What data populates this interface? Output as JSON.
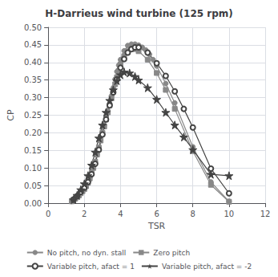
{
  "chart_data": {
    "type": "line",
    "title": "H-Darrieus wind turbine (125 rpm)",
    "xlabel": "TSR",
    "ylabel": "CP",
    "xlim": [
      0,
      12
    ],
    "ylim": [
      0,
      0.5
    ],
    "xticks": [
      0,
      2,
      4,
      6,
      8,
      10,
      12
    ],
    "yticks": [
      {
        "value": 0,
        "label": "0.00"
      },
      0.05,
      {
        "value": 0.1,
        "label": "0.10"
      },
      0.15,
      {
        "value": 0.2,
        "label": "0.20"
      },
      0.25,
      {
        "value": 0.3,
        "label": "0.30"
      },
      0.35,
      {
        "value": 0.4,
        "label": "0.40"
      },
      0.45,
      {
        "value": 0.5,
        "label": "0.50"
      }
    ],
    "grid": true,
    "legend": "bottom",
    "series": [
      {
        "name": "No pitch, no dyn. stall",
        "color": "#888888",
        "marker": "circle",
        "x": [
          1.3,
          1.4,
          1.5,
          1.6,
          1.7,
          1.8,
          1.9,
          2.0,
          2.1,
          2.2,
          2.3,
          2.4,
          2.5,
          2.6,
          2.7,
          2.8,
          2.9,
          3.0,
          3.1,
          3.2,
          3.3,
          3.4,
          3.5,
          3.6,
          3.7,
          3.8,
          3.9,
          4.0,
          4.2,
          4.4,
          4.6,
          4.8,
          5.0,
          5.2,
          5.4,
          5.6,
          5.8,
          6.0,
          6.5,
          7.0,
          8.0,
          9.0,
          10.0
        ],
        "values": [
          0.005,
          0.01,
          0.015,
          0.02,
          0.025,
          0.03,
          0.035,
          0.042,
          0.05,
          0.06,
          0.072,
          0.085,
          0.1,
          0.118,
          0.138,
          0.158,
          0.18,
          0.202,
          0.222,
          0.242,
          0.262,
          0.282,
          0.305,
          0.328,
          0.352,
          0.374,
          0.392,
          0.408,
          0.433,
          0.448,
          0.452,
          0.452,
          0.449,
          0.443,
          0.435,
          0.423,
          0.408,
          0.39,
          0.34,
          0.285,
          0.16,
          0.06,
          0.005
        ]
      },
      {
        "name": "Zero pitch",
        "color": "#888888",
        "marker": "square",
        "x": [
          1.3,
          1.4,
          1.5,
          1.6,
          1.7,
          1.8,
          1.9,
          2.0,
          2.1,
          2.2,
          2.3,
          2.4,
          2.5,
          2.6,
          2.7,
          2.8,
          2.9,
          3.0,
          3.1,
          3.2,
          3.3,
          3.4,
          3.5,
          3.6,
          3.7,
          3.8,
          3.9,
          4.0,
          4.2,
          4.4,
          4.6,
          4.8,
          5.0,
          5.5,
          6.0,
          6.5,
          7.0,
          8.0,
          9.0,
          10.0
        ],
        "values": [
          0.005,
          0.01,
          0.013,
          0.018,
          0.022,
          0.028,
          0.034,
          0.04,
          0.048,
          0.058,
          0.07,
          0.085,
          0.1,
          0.118,
          0.138,
          0.158,
          0.178,
          0.2,
          0.218,
          0.238,
          0.258,
          0.278,
          0.298,
          0.318,
          0.338,
          0.358,
          0.376,
          0.395,
          0.418,
          0.432,
          0.438,
          0.438,
          0.432,
          0.408,
          0.37,
          0.322,
          0.268,
          0.148,
          0.052,
          0.004
        ]
      },
      {
        "name": "Variable pitch, afact = 1",
        "color": "#444444",
        "marker": "open_circle",
        "x": [
          1.4,
          1.6,
          1.8,
          2.0,
          2.2,
          2.4,
          2.6,
          2.8,
          3.0,
          3.2,
          3.4,
          3.6,
          3.8,
          4.0,
          4.2,
          4.4,
          4.6,
          4.8,
          5.0,
          5.5,
          6.0,
          6.5,
          7.0,
          7.5,
          8.0,
          9.0,
          10.0
        ],
        "values": [
          0.01,
          0.02,
          0.032,
          0.044,
          0.06,
          0.082,
          0.112,
          0.152,
          0.195,
          0.238,
          0.278,
          0.315,
          0.352,
          0.385,
          0.41,
          0.428,
          0.438,
          0.443,
          0.443,
          0.428,
          0.398,
          0.362,
          0.318,
          0.268,
          0.215,
          0.098,
          0.028
        ]
      },
      {
        "name": "Variable pitch, afact = -2",
        "color": "#444444",
        "marker": "star",
        "x": [
          1.4,
          1.6,
          1.8,
          2.0,
          2.2,
          2.4,
          2.6,
          2.8,
          3.0,
          3.2,
          3.4,
          3.6,
          3.8,
          4.0,
          4.2,
          4.5,
          4.8,
          5.0,
          5.5,
          6.0,
          6.5,
          7.0,
          7.5,
          8.0,
          9.0,
          10.0
        ],
        "values": [
          0.01,
          0.022,
          0.038,
          0.055,
          0.078,
          0.108,
          0.145,
          0.185,
          0.222,
          0.258,
          0.292,
          0.322,
          0.348,
          0.365,
          0.373,
          0.37,
          0.36,
          0.35,
          0.328,
          0.295,
          0.258,
          0.222,
          0.188,
          0.152,
          0.082,
          0.078
        ]
      }
    ]
  }
}
